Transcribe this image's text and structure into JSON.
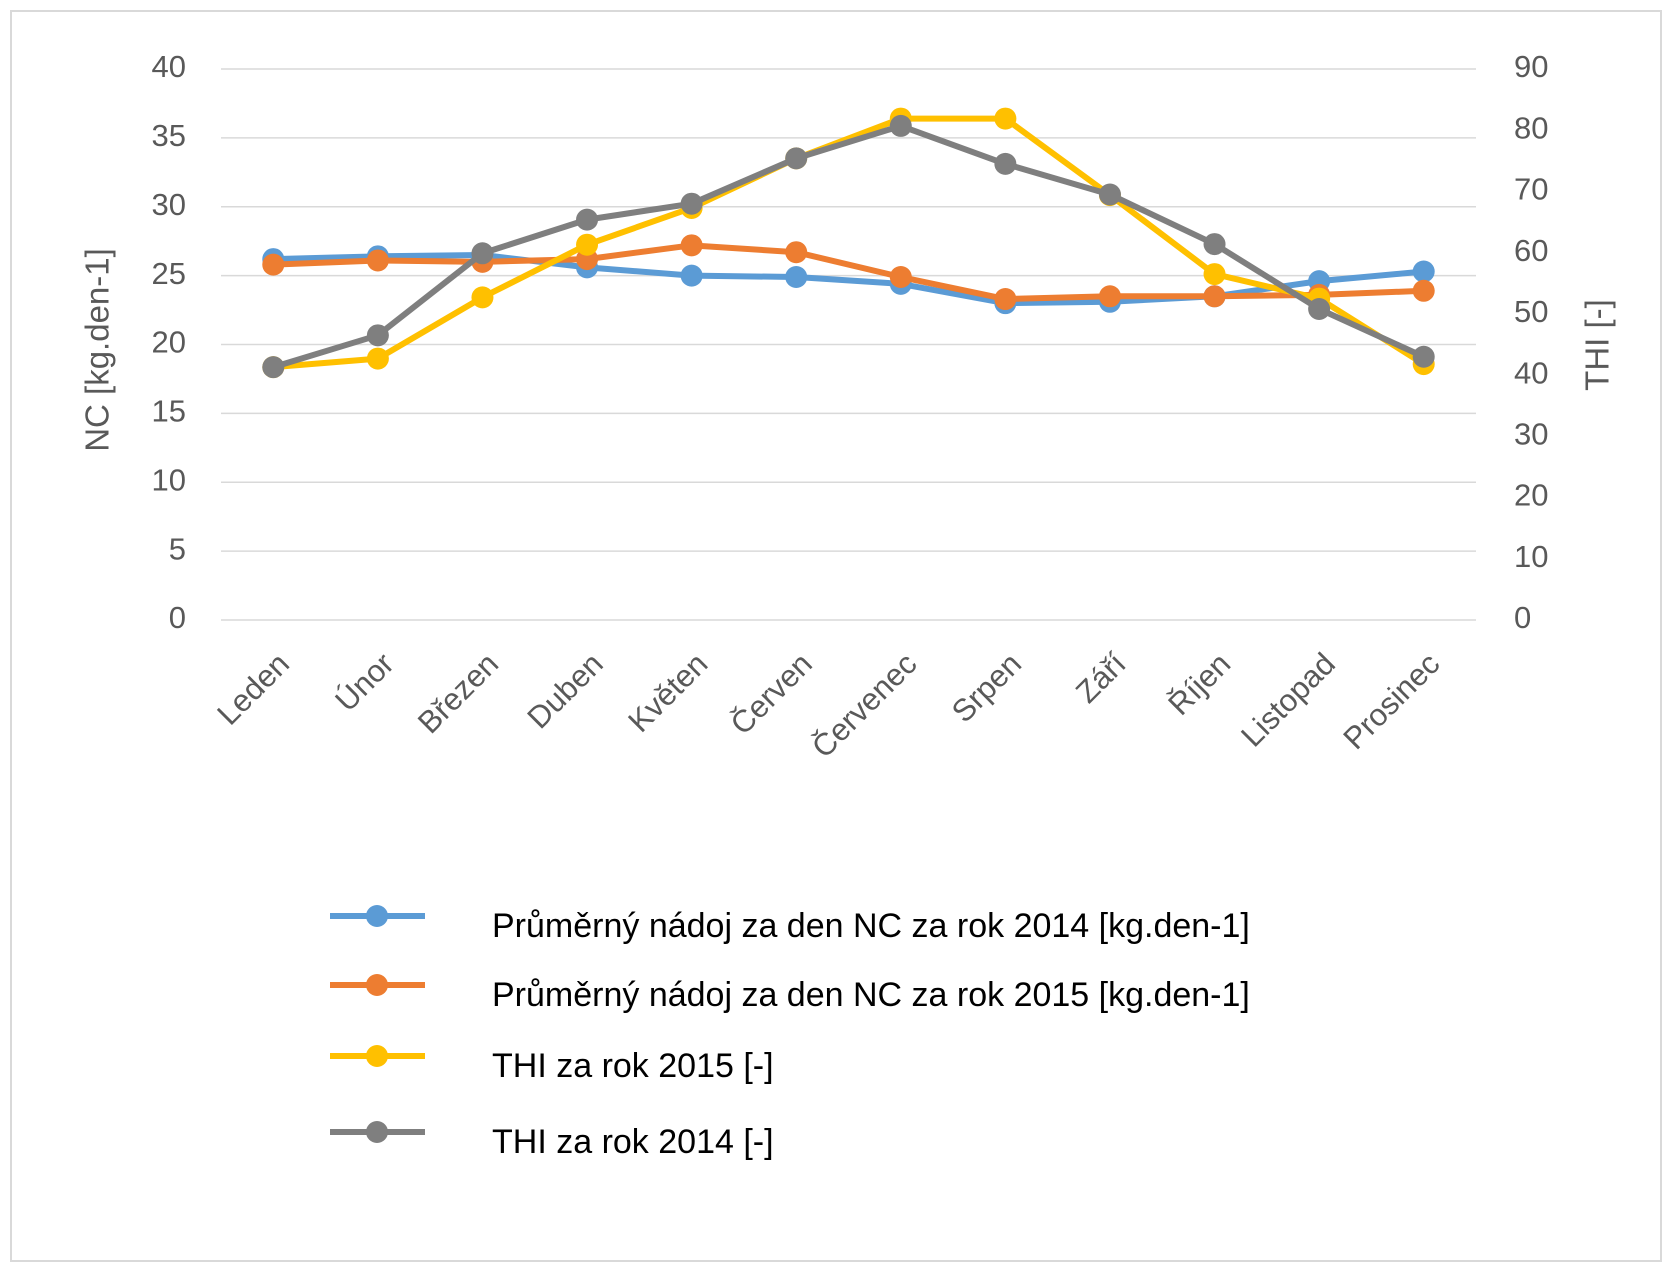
{
  "chart_data": {
    "type": "line",
    "categories": [
      "Leden",
      "Únor",
      "Březen",
      "Duben",
      "Květen",
      "Červen",
      "Červenec",
      "Srpen",
      "Září",
      "Říjen",
      "Listopad",
      "Prosinec"
    ],
    "y_label": "NC [kg.den-1]",
    "y2_label": "THI [-]",
    "ylim": [
      0,
      40
    ],
    "yticks": [
      0,
      5,
      10,
      15,
      20,
      25,
      30,
      35,
      40
    ],
    "y2lim": [
      0,
      90
    ],
    "y2ticks": [
      0,
      10,
      20,
      30,
      40,
      50,
      60,
      70,
      80,
      90
    ],
    "grid": true,
    "legend": "bottom",
    "series": [
      {
        "name": "Průměrný nádoj za den NC za rok 2014 [kg.den-1]",
        "color": "#5b9bd5",
        "axis": "y",
        "values": [
          26.2,
          26.4,
          26.5,
          25.6,
          25.0,
          24.9,
          24.4,
          23.0,
          23.1,
          23.5,
          24.6,
          25.3
        ]
      },
      {
        "name": "Průměrný nádoj za den NC za rok 2015 [kg.den-1]",
        "color": "#ed7d31",
        "axis": "y",
        "values": [
          25.8,
          26.1,
          26.0,
          26.2,
          27.2,
          26.7,
          24.9,
          23.3,
          23.5,
          23.5,
          23.6,
          23.9
        ]
      },
      {
        "name": "THI za rok 2015 [-]",
        "color": "#ffc000",
        "axis": "y2",
        "values": [
          41.3,
          42.7,
          52.7,
          61.3,
          67.3,
          75.4,
          81.9,
          81.9,
          69.4,
          56.5,
          52.5,
          41.8
        ]
      },
      {
        "name": "THI za rok 2014 [-]",
        "color": "#7f7f7f",
        "axis": "y2",
        "values": [
          41.3,
          46.5,
          59.9,
          65.4,
          68.0,
          75.4,
          80.7,
          74.5,
          69.5,
          61.4,
          50.8,
          43.0
        ]
      }
    ]
  }
}
